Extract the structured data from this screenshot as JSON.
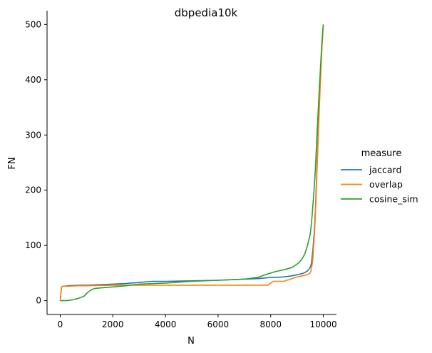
{
  "chart_data": {
    "type": "line",
    "title": "dbpedia10k",
    "xlabel": "N",
    "ylabel": "FN",
    "xlim": [
      -500,
      10500
    ],
    "ylim": [
      -25,
      525
    ],
    "x_ticks": [
      0,
      2000,
      4000,
      6000,
      8000,
      10000
    ],
    "y_ticks": [
      0,
      100,
      200,
      300,
      400,
      500
    ],
    "grid": false,
    "legend": {
      "title": "measure",
      "placement": "right"
    },
    "series": [
      {
        "name": "jaccard",
        "color": "#1f77b4",
        "x": [
          0,
          50,
          100,
          300,
          700,
          1000,
          1500,
          2000,
          2500,
          3000,
          3500,
          4000,
          5000,
          6000,
          7000,
          7500,
          8000,
          8500,
          8800,
          9000,
          9200,
          9300,
          9400,
          9500,
          9550,
          9600,
          9650,
          9700,
          9750,
          9800,
          9850,
          9900,
          9950,
          10000
        ],
        "y": [
          0,
          25,
          26,
          27,
          28,
          28,
          29,
          30,
          31,
          33,
          35,
          35,
          36,
          37,
          39,
          40,
          42,
          43,
          45,
          47,
          49,
          51,
          54,
          60,
          68,
          90,
          120,
          165,
          230,
          300,
          360,
          420,
          465,
          500
        ]
      },
      {
        "name": "overlap",
        "color": "#ff7f0e",
        "x": [
          0,
          50,
          100,
          300,
          700,
          1000,
          2000,
          3000,
          5000,
          7000,
          7900,
          8000,
          8100,
          8500,
          8600,
          8700,
          8800,
          9000,
          9200,
          9400,
          9500,
          9550,
          9600,
          9650,
          9700,
          9750,
          9800,
          9850,
          9900,
          9950,
          10000
        ],
        "y": [
          0,
          25,
          26,
          26,
          27,
          27,
          28,
          28,
          28,
          28,
          28,
          32,
          35,
          35,
          37,
          38,
          40,
          43,
          45,
          47,
          50,
          57,
          75,
          110,
          155,
          220,
          290,
          350,
          410,
          460,
          500
        ]
      },
      {
        "name": "cosine_sim",
        "color": "#2ca02c",
        "x": [
          0,
          200,
          400,
          600,
          800,
          900,
          1000,
          1100,
          1200,
          1300,
          1500,
          2000,
          2500,
          3000,
          4000,
          5000,
          6000,
          7000,
          7500,
          7800,
          8000,
          8200,
          8500,
          8800,
          9000,
          9100,
          9200,
          9300,
          9400,
          9450,
          9500,
          9550,
          9600,
          9650,
          9700,
          9750,
          9800,
          9850,
          9900,
          9950,
          10000
        ],
        "y": [
          0,
          0,
          1,
          3,
          6,
          8,
          13,
          17,
          20,
          22,
          23,
          25,
          27,
          30,
          32,
          35,
          37,
          39,
          42,
          47,
          50,
          53,
          56,
          60,
          66,
          70,
          76,
          85,
          100,
          110,
          120,
          140,
          170,
          200,
          240,
          290,
          340,
          385,
          430,
          470,
          500
        ]
      }
    ]
  }
}
